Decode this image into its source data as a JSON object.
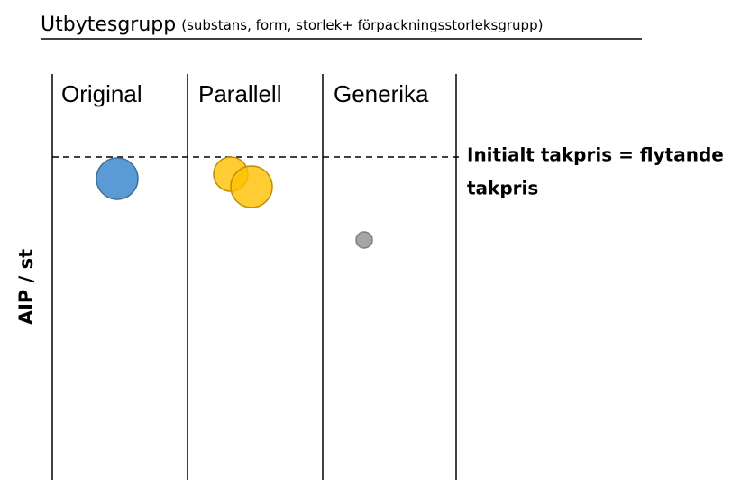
{
  "header": {
    "title": "Utbytesgrupp",
    "subtitle": "(substans, form, storlek+ förpackningsstorleksgrupp)"
  },
  "columns": [
    "Original",
    "Parallell",
    "Generika"
  ],
  "annotation": [
    "Initialt takpris = flytande",
    "takpris"
  ],
  "y_label": "AIP / st"
}
